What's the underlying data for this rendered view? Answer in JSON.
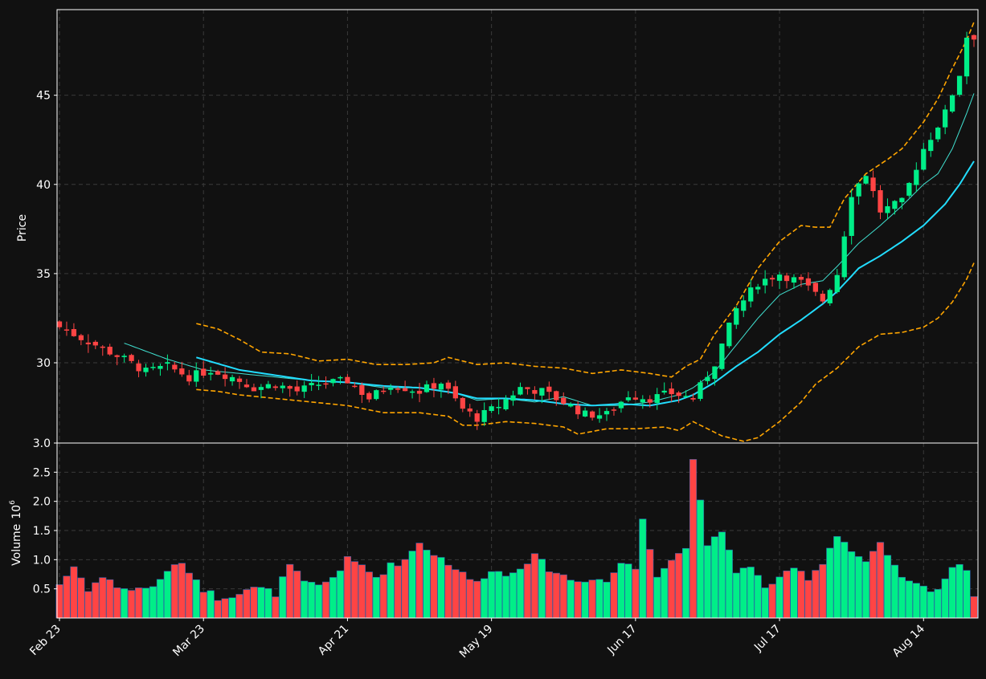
{
  "colors": {
    "background": "#111111",
    "up": "#00ee88",
    "down": "#ff4444",
    "ma_fast": "#40e0d0",
    "ma_slow": "#22ddff",
    "bands": "#ffa500",
    "grid": "#3a3a3a",
    "text": "#ffffff"
  },
  "chart_data": {
    "type": "candlestick",
    "x_tick_labels": [
      "Feb 23",
      "Mar 23",
      "Apr 21",
      "May 19",
      "Jun 17",
      "Jul 17",
      "Aug 14"
    ],
    "x_tick_index": [
      0,
      20,
      40,
      60,
      80,
      100,
      120
    ],
    "price_axis": {
      "label": "Price",
      "ticks": [
        30,
        35,
        40,
        45
      ],
      "ylim": [
        25.5,
        49.8
      ]
    },
    "volume_axis": {
      "label": "Volume",
      "multiplier_label": "10",
      "multiplier_exp": "6",
      "ticks": [
        "0.5",
        "1.0",
        "1.5",
        "2.0",
        "2.5",
        "3.0"
      ],
      "tick_values": [
        0.5,
        1.0,
        1.5,
        2.0,
        2.5,
        3.0
      ],
      "ylim": [
        0.0,
        3.0
      ]
    },
    "grid": true,
    "overlays": [
      "moving average (fast)",
      "moving average (slow)",
      "upper band",
      "lower band"
    ],
    "anchors": {
      "close": [
        [
          0,
          32.0
        ],
        [
          3,
          31.4
        ],
        [
          6,
          30.8
        ],
        [
          9,
          30.2
        ],
        [
          12,
          29.5
        ],
        [
          15,
          29.8
        ],
        [
          18,
          29.2
        ],
        [
          21,
          29.6
        ],
        [
          24,
          29.2
        ],
        [
          27,
          28.6
        ],
        [
          30,
          28.8
        ],
        [
          33,
          28.4
        ],
        [
          36,
          28.8
        ],
        [
          40,
          29.0
        ],
        [
          43,
          28.0
        ],
        [
          46,
          28.8
        ],
        [
          50,
          28.4
        ],
        [
          53,
          28.9
        ],
        [
          56,
          27.4
        ],
        [
          58,
          26.9
        ],
        [
          61,
          27.6
        ],
        [
          64,
          28.6
        ],
        [
          67,
          28.4
        ],
        [
          70,
          27.8
        ],
        [
          73,
          27.1
        ],
        [
          76,
          27.1
        ],
        [
          79,
          28.2
        ],
        [
          82,
          28.0
        ],
        [
          85,
          28.3
        ],
        [
          88,
          28.0
        ],
        [
          91,
          30.0
        ],
        [
          94,
          33.0
        ],
        [
          97,
          34.5
        ],
        [
          100,
          35.0
        ],
        [
          103,
          34.5
        ],
        [
          106,
          33.5
        ],
        [
          108,
          35.0
        ],
        [
          110,
          39.5
        ],
        [
          112,
          40.6
        ],
        [
          114,
          38.5
        ],
        [
          117,
          39.0
        ],
        [
          120,
          42.0
        ],
        [
          123,
          44.0
        ],
        [
          125,
          46.2
        ],
        [
          126,
          48.3
        ]
      ],
      "ma_fast": [
        [
          9,
          31.1
        ],
        [
          15,
          30.2
        ],
        [
          20,
          29.6
        ],
        [
          25,
          29.4
        ],
        [
          30,
          29.2
        ],
        [
          35,
          29.0
        ],
        [
          40,
          28.9
        ],
        [
          45,
          28.6
        ],
        [
          50,
          28.6
        ],
        [
          55,
          28.3
        ],
        [
          58,
          27.9
        ],
        [
          62,
          28.0
        ],
        [
          66,
          27.8
        ],
        [
          70,
          28.1
        ],
        [
          74,
          27.6
        ],
        [
          78,
          27.6
        ],
        [
          82,
          27.8
        ],
        [
          86,
          28.2
        ],
        [
          88,
          28.6
        ],
        [
          91,
          29.5
        ],
        [
          94,
          31.0
        ],
        [
          97,
          32.5
        ],
        [
          100,
          33.8
        ],
        [
          103,
          34.4
        ],
        [
          106,
          34.6
        ],
        [
          108,
          35.4
        ],
        [
          111,
          36.7
        ],
        [
          114,
          37.7
        ],
        [
          117,
          38.8
        ],
        [
          120,
          40.0
        ],
        [
          122,
          40.6
        ],
        [
          124,
          42.0
        ],
        [
          126,
          44.0
        ],
        [
          127,
          45.1
        ]
      ],
      "ma_slow": [
        [
          19,
          30.3
        ],
        [
          25,
          29.6
        ],
        [
          30,
          29.3
        ],
        [
          35,
          29.0
        ],
        [
          40,
          28.9
        ],
        [
          45,
          28.7
        ],
        [
          50,
          28.6
        ],
        [
          55,
          28.3
        ],
        [
          58,
          28.0
        ],
        [
          62,
          28.0
        ],
        [
          66,
          27.9
        ],
        [
          70,
          27.7
        ],
        [
          74,
          27.6
        ],
        [
          78,
          27.7
        ],
        [
          82,
          27.6
        ],
        [
          86,
          27.9
        ],
        [
          88,
          28.2
        ],
        [
          91,
          28.9
        ],
        [
          94,
          29.8
        ],
        [
          97,
          30.6
        ],
        [
          100,
          31.6
        ],
        [
          103,
          32.4
        ],
        [
          106,
          33.3
        ],
        [
          108,
          34.0
        ],
        [
          111,
          35.3
        ],
        [
          114,
          36.0
        ],
        [
          117,
          36.8
        ],
        [
          120,
          37.7
        ],
        [
          123,
          38.9
        ],
        [
          125,
          40.0
        ],
        [
          127,
          41.3
        ]
      ],
      "upper_band": [
        [
          19,
          32.2
        ],
        [
          22,
          31.9
        ],
        [
          25,
          31.3
        ],
        [
          28,
          30.6
        ],
        [
          32,
          30.5
        ],
        [
          36,
          30.1
        ],
        [
          40,
          30.2
        ],
        [
          44,
          29.9
        ],
        [
          48,
          29.9
        ],
        [
          52,
          30.0
        ],
        [
          54,
          30.3
        ],
        [
          58,
          29.9
        ],
        [
          62,
          30.0
        ],
        [
          66,
          29.8
        ],
        [
          70,
          29.7
        ],
        [
          74,
          29.4
        ],
        [
          78,
          29.6
        ],
        [
          82,
          29.4
        ],
        [
          85,
          29.2
        ],
        [
          87,
          29.8
        ],
        [
          89,
          30.2
        ],
        [
          91,
          31.6
        ],
        [
          94,
          33.2
        ],
        [
          97,
          35.3
        ],
        [
          100,
          36.8
        ],
        [
          103,
          37.7
        ],
        [
          105,
          37.6
        ],
        [
          107,
          37.6
        ],
        [
          109,
          39.2
        ],
        [
          112,
          40.6
        ],
        [
          115,
          41.4
        ],
        [
          117,
          42.0
        ],
        [
          120,
          43.5
        ],
        [
          122,
          44.8
        ],
        [
          124,
          46.5
        ],
        [
          126,
          48.1
        ],
        [
          127,
          49.1
        ]
      ],
      "lower_band": [
        [
          19,
          28.5
        ],
        [
          22,
          28.4
        ],
        [
          25,
          28.2
        ],
        [
          30,
          28.0
        ],
        [
          35,
          27.8
        ],
        [
          40,
          27.6
        ],
        [
          45,
          27.2
        ],
        [
          50,
          27.2
        ],
        [
          54,
          27.0
        ],
        [
          56,
          26.5
        ],
        [
          58,
          26.5
        ],
        [
          62,
          26.7
        ],
        [
          66,
          26.6
        ],
        [
          70,
          26.4
        ],
        [
          72,
          26.0
        ],
        [
          76,
          26.3
        ],
        [
          80,
          26.3
        ],
        [
          84,
          26.4
        ],
        [
          86,
          26.2
        ],
        [
          88,
          26.7
        ],
        [
          90,
          26.3
        ],
        [
          92,
          25.9
        ],
        [
          95,
          25.6
        ],
        [
          97,
          25.8
        ],
        [
          100,
          26.7
        ],
        [
          103,
          27.8
        ],
        [
          105,
          28.8
        ],
        [
          108,
          29.7
        ],
        [
          111,
          30.9
        ],
        [
          114,
          31.6
        ],
        [
          117,
          31.7
        ],
        [
          120,
          32.0
        ],
        [
          122,
          32.5
        ],
        [
          124,
          33.4
        ],
        [
          126,
          34.7
        ],
        [
          127,
          35.6
        ]
      ],
      "volume": [
        [
          0,
          0.58
        ],
        [
          2,
          0.88
        ],
        [
          4,
          0.5
        ],
        [
          6,
          0.7
        ],
        [
          8,
          0.55
        ],
        [
          10,
          0.48
        ],
        [
          12,
          0.52
        ],
        [
          14,
          0.62
        ],
        [
          16,
          0.95
        ],
        [
          18,
          0.82
        ],
        [
          20,
          0.5
        ],
        [
          22,
          0.35
        ],
        [
          24,
          0.4
        ],
        [
          26,
          0.5
        ],
        [
          28,
          0.5
        ],
        [
          30,
          0.42
        ],
        [
          32,
          0.9
        ],
        [
          34,
          0.6
        ],
        [
          36,
          0.55
        ],
        [
          38,
          0.7
        ],
        [
          40,
          1.0
        ],
        [
          42,
          0.9
        ],
        [
          44,
          0.7
        ],
        [
          46,
          0.9
        ],
        [
          48,
          1.0
        ],
        [
          50,
          1.3
        ],
        [
          52,
          1.1
        ],
        [
          54,
          0.95
        ],
        [
          56,
          0.75
        ],
        [
          58,
          0.6
        ],
        [
          60,
          0.85
        ],
        [
          62,
          0.72
        ],
        [
          64,
          0.9
        ],
        [
          66,
          1.05
        ],
        [
          68,
          0.85
        ],
        [
          70,
          0.72
        ],
        [
          72,
          0.62
        ],
        [
          74,
          0.7
        ],
        [
          76,
          0.62
        ],
        [
          78,
          0.95
        ],
        [
          80,
          0.85
        ],
        [
          81,
          1.72
        ],
        [
          83,
          0.75
        ],
        [
          85,
          1.0
        ],
        [
          87,
          1.2
        ],
        [
          88,
          2.78
        ],
        [
          89,
          1.97
        ],
        [
          90,
          1.2
        ],
        [
          92,
          1.5
        ],
        [
          94,
          0.82
        ],
        [
          96,
          0.85
        ],
        [
          98,
          0.55
        ],
        [
          100,
          0.65
        ],
        [
          102,
          0.85
        ],
        [
          104,
          0.7
        ],
        [
          106,
          0.95
        ],
        [
          108,
          1.45
        ],
        [
          110,
          1.15
        ],
        [
          112,
          0.95
        ],
        [
          114,
          1.25
        ],
        [
          116,
          0.85
        ],
        [
          118,
          0.6
        ],
        [
          120,
          0.52
        ],
        [
          122,
          0.5
        ],
        [
          124,
          0.88
        ],
        [
          126,
          0.85
        ],
        [
          127,
          0.42
        ]
      ]
    }
  }
}
